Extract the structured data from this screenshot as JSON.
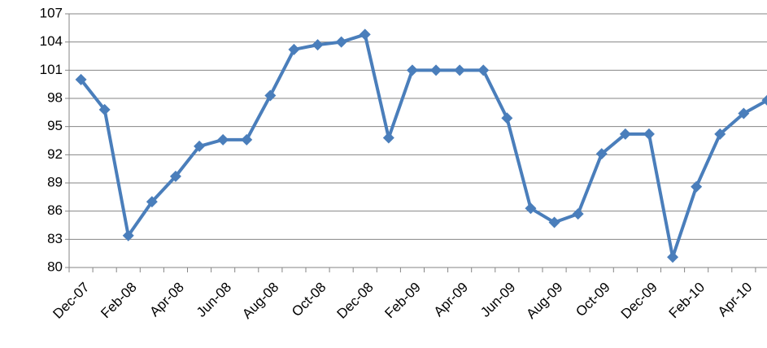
{
  "chart_data": {
    "type": "line",
    "categories": [
      "Dec-07",
      null,
      "Feb-08",
      null,
      "Apr-08",
      null,
      "Jun-08",
      null,
      "Aug-08",
      null,
      "Oct-08",
      null,
      "Dec-08",
      null,
      "Feb-09",
      null,
      "Apr-09",
      null,
      "Jun-09",
      null,
      "Aug-09",
      null,
      "Oct-09",
      null,
      "Dec-09",
      null,
      "Feb-10",
      null,
      "Apr-10",
      null
    ],
    "series": [
      {
        "color": "#4a7ebb",
        "values": [
          100.0,
          96.8,
          83.4,
          87.0,
          89.7,
          92.9,
          93.6,
          93.6,
          98.3,
          103.2,
          103.7,
          104.0,
          104.8,
          93.8,
          101.0,
          101.0,
          101.0,
          101.0,
          95.9,
          86.3,
          84.8,
          85.7,
          92.1,
          94.2,
          94.2,
          81.1,
          88.6,
          94.2,
          96.4,
          97.8
        ]
      }
    ],
    "ylim": [
      80,
      107
    ],
    "yticks": [
      80,
      83,
      86,
      89,
      92,
      95,
      98,
      101,
      104,
      107
    ],
    "grid": true
  }
}
